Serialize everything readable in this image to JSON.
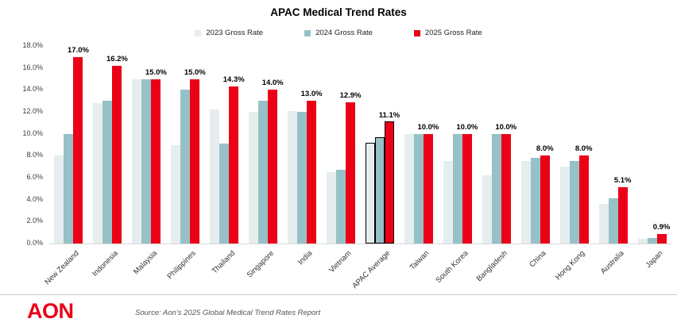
{
  "title": "APAC Medical Trend Rates",
  "legend": [
    {
      "label": "2023 Gross Rate",
      "color": "#E6EDEF"
    },
    {
      "label": "2024 Gross Rate",
      "color": "#96C1C6"
    },
    {
      "label": "2025 Gross Rate",
      "color": "#EB0017"
    }
  ],
  "y_axis_ticks": [
    "0.0%",
    "2.0%",
    "4.0%",
    "6.0%",
    "8.0%",
    "10.0%",
    "12.0%",
    "14.0%",
    "16.0%",
    "18.0%"
  ],
  "chart_data": {
    "type": "bar",
    "title": "APAC Medical Trend Rates",
    "categories": [
      "New Zealand",
      "Indonesia",
      "Malaysia",
      "Philippines",
      "Thailand",
      "Singapore",
      "India",
      "Vietnam",
      "APAC Average",
      "Taiwan",
      "South Korea",
      "Bangladesh",
      "China",
      "Hong Kong",
      "Australia",
      "Japan"
    ],
    "series": [
      {
        "name": "2023 Gross Rate",
        "color": "#E6EDEF",
        "values": [
          8.0,
          12.8,
          15.0,
          9.0,
          12.2,
          12.0,
          12.1,
          6.5,
          9.2,
          10.0,
          7.5,
          6.2,
          7.5,
          7.0,
          3.6,
          0.4
        ]
      },
      {
        "name": "2024 Gross Rate",
        "color": "#96C1C6",
        "values": [
          10.0,
          13.0,
          15.0,
          14.0,
          9.1,
          13.0,
          12.0,
          6.7,
          9.7,
          10.0,
          10.0,
          10.0,
          7.8,
          7.5,
          4.1,
          0.5
        ]
      },
      {
        "name": "2025 Gross Rate",
        "color": "#EB0017",
        "values": [
          17.0,
          16.2,
          15.0,
          15.0,
          14.3,
          14.0,
          13.0,
          12.9,
          11.1,
          10.0,
          10.0,
          10.0,
          8.0,
          8.0,
          5.1,
          0.9
        ]
      }
    ],
    "data_labels_2025": [
      "17.0%",
      "16.2%",
      "15.0%",
      "15.0%",
      "14.3%",
      "14.0%",
      "13.0%",
      "12.9%",
      "11.1%",
      "10.0%",
      "10.0%",
      "10.0%",
      "8.0%",
      "8.0%",
      "5.1%",
      "0.9%"
    ],
    "highlight_category": "APAC Average",
    "ylim": [
      0,
      18
    ],
    "grid": false,
    "legend_position": "top"
  },
  "footer": {
    "logo": "AON",
    "source": "Source: Aon's 2025 Global Medical Trend Rates Report"
  }
}
